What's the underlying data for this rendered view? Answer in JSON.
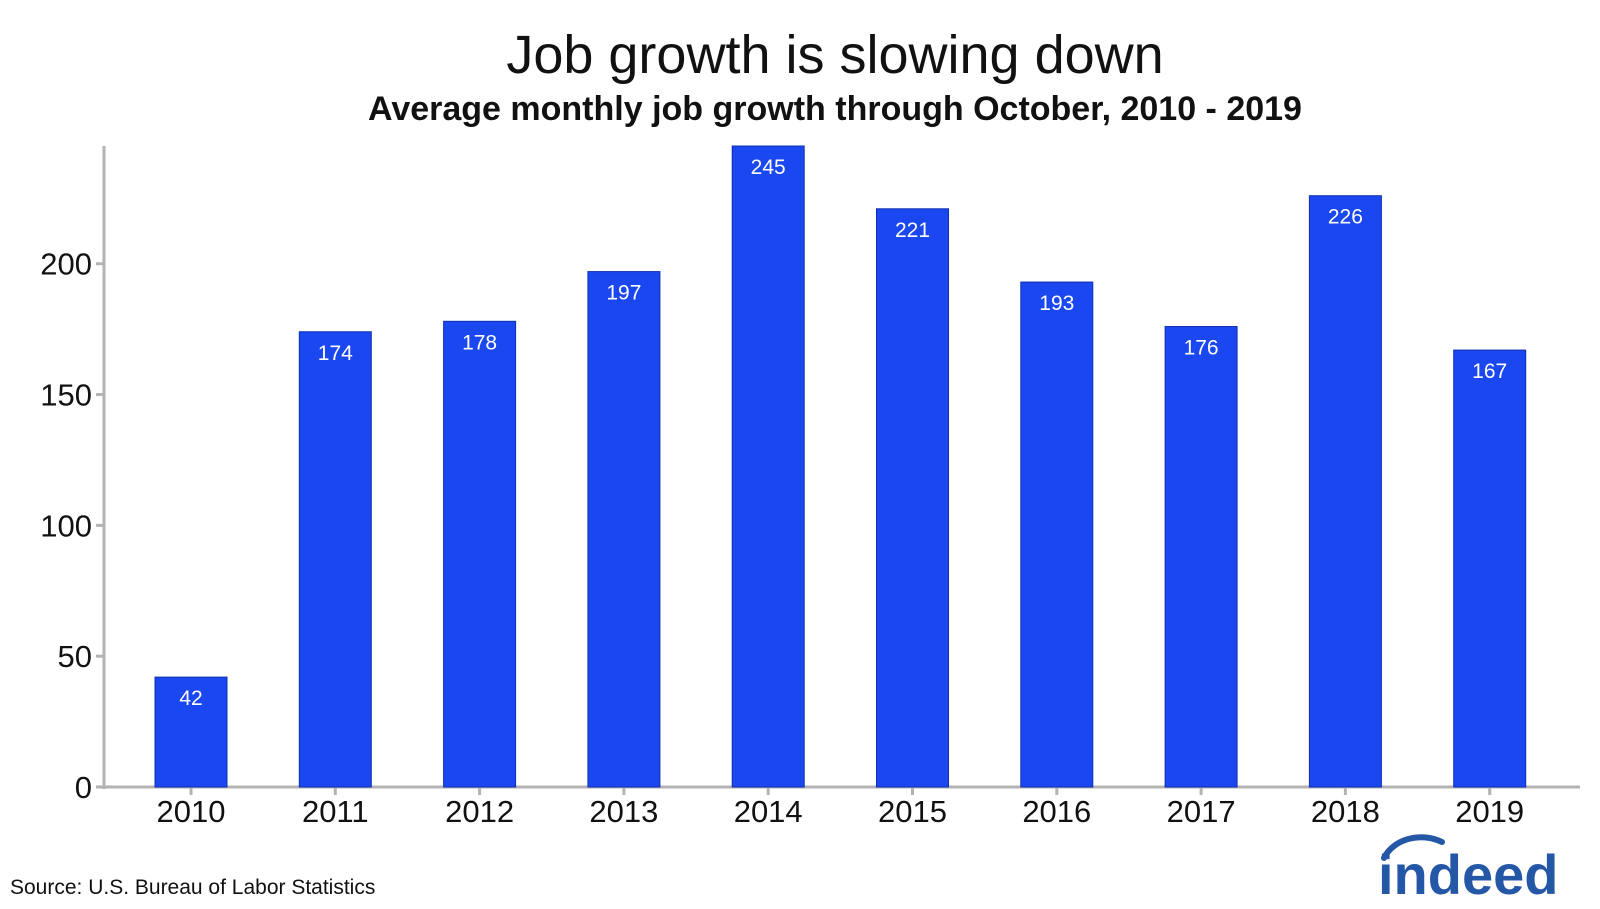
{
  "brand": {
    "logo_text": "indeed",
    "logo_color": "#2557a7"
  },
  "footer": {
    "source": "Source: U.S. Bureau of Labor Statistics"
  },
  "chart_data": {
    "type": "bar",
    "title": "Job growth is slowing down",
    "subtitle": "Average monthly job growth through October, 2010 - 2019",
    "xlabel": "",
    "ylabel": "",
    "categories": [
      "2010",
      "2011",
      "2012",
      "2013",
      "2014",
      "2015",
      "2016",
      "2017",
      "2018",
      "2019"
    ],
    "values": [
      42,
      174,
      178,
      197,
      245,
      221,
      193,
      176,
      226,
      167
    ],
    "data_labels": [
      "42",
      "174",
      "178",
      "197",
      "245",
      "221",
      "193",
      "176",
      "226",
      "167"
    ],
    "ylim": [
      0,
      245
    ],
    "yticks": [
      0,
      50,
      100,
      150,
      200
    ],
    "grid": false,
    "legend": "none",
    "bar_color": "#1a47f0",
    "axis_color": "#b3b3b3"
  }
}
